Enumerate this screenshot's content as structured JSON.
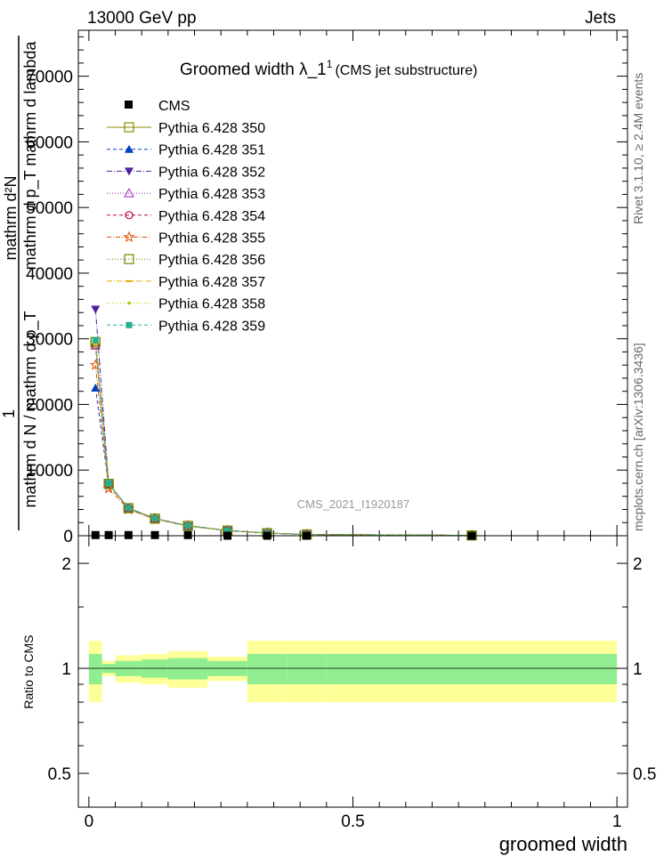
{
  "header": {
    "left": "13000 GeV pp",
    "right": "Jets"
  },
  "main_plot": {
    "title": "Groomed width  λ_1",
    "title_sup": "1",
    "title_suffix": "(CMS jet substructure)",
    "ylabel_line1": "mathrm d²N",
    "ylabel_line2": "mathrm d p_T mathrm d lambda",
    "ylabel_line3": "1",
    "ylabel_line4": "mathrm d N / mathrm d p_T",
    "y_ticks": [
      "0",
      "10000",
      "20000",
      "30000",
      "40000",
      "50000",
      "60000",
      "70000"
    ],
    "watermark": "CMS_2021_I1920187"
  },
  "side_text": {
    "rivet": "Rivet 3.1.10, ≥ 2.4M events",
    "mcplots": "mcplots.cern.ch [arXiv:1306.3436]"
  },
  "ratio_plot": {
    "ylabel": "Ratio to CMS",
    "y_ticks_left": [
      "0.5",
      "1",
      "2"
    ],
    "y_ticks_right": [
      "0.5",
      "1",
      "2"
    ],
    "x_ticks": [
      "0",
      "0.5",
      "1"
    ],
    "xlabel": "groomed width"
  },
  "chart_data": {
    "type": "line",
    "xlim": [
      -0.02,
      1.02
    ],
    "ylim": [
      0,
      77000
    ],
    "ratio_ylim": [
      0.4,
      2.4
    ],
    "ratio_log_scale": true,
    "x_label": "groomed width",
    "bin_edges": [
      0,
      0.025,
      0.05,
      0.1,
      0.15,
      0.225,
      0.3,
      0.375,
      0.45,
      1.0
    ],
    "bin_centers": [
      0.0125,
      0.0375,
      0.075,
      0.125,
      0.1875,
      0.2625,
      0.3375,
      0.4125,
      0.725
    ],
    "cms": {
      "name": "CMS",
      "values": [
        100,
        100,
        100,
        100,
        100,
        0,
        0,
        0,
        0
      ],
      "band_inner": [
        0.1,
        0.03,
        0.05,
        0.06,
        0.07,
        0.05,
        0.1,
        0.1,
        0.1
      ],
      "band_outer": [
        0.2,
        0.05,
        0.09,
        0.1,
        0.12,
        0.08,
        0.2,
        0.2,
        0.2
      ]
    },
    "series": [
      {
        "name": "Pythia 6.428 350",
        "color": "#8b8b00",
        "marker": "open-square",
        "dash": "solid",
        "values": [
          29500,
          7900,
          4200,
          2600,
          1500,
          800,
          400,
          200,
          50
        ]
      },
      {
        "name": "Pythia 6.428 351",
        "color": "#0040c0",
        "marker": "triangle-up",
        "dash": "4,3",
        "values": [
          22500,
          7700,
          4200,
          2650,
          1550,
          820,
          410,
          200,
          50
        ]
      },
      {
        "name": "Pythia 6.428 352",
        "color": "#5020a0",
        "marker": "triangle-down",
        "dash": "6,2,1,2",
        "values": [
          34500,
          7900,
          4100,
          2550,
          1480,
          790,
          390,
          190,
          50
        ]
      },
      {
        "name": "Pythia 6.428 353",
        "color": "#a020c0",
        "marker": "open-triangle-up",
        "dash": "1,2",
        "values": [
          29000,
          7800,
          4150,
          2600,
          1500,
          800,
          400,
          200,
          50
        ]
      },
      {
        "name": "Pythia 6.428 354",
        "color": "#c00030",
        "marker": "open-circle",
        "dash": "4,3",
        "values": [
          29000,
          7850,
          4200,
          2600,
          1500,
          800,
          400,
          200,
          50
        ]
      },
      {
        "name": "Pythia 6.428 355",
        "color": "#e05000",
        "marker": "open-star",
        "dash": "5,2,1,2",
        "values": [
          26000,
          7200,
          4000,
          2550,
          1480,
          790,
          400,
          200,
          50
        ]
      },
      {
        "name": "Pythia 6.428 356",
        "color": "#6a8a00",
        "marker": "open-square",
        "dash": "1,2",
        "values": [
          29500,
          7900,
          4200,
          2600,
          1500,
          800,
          400,
          200,
          50
        ]
      },
      {
        "name": "Pythia 6.428 357",
        "color": "#e0b000",
        "marker": "dash",
        "dash": "6,2,1,2",
        "values": [
          29300,
          7850,
          4180,
          2600,
          1500,
          800,
          400,
          200,
          50
        ]
      },
      {
        "name": "Pythia 6.428 358",
        "color": "#b0c800",
        "marker": "dot",
        "dash": "1,2",
        "values": [
          29200,
          7850,
          4180,
          2600,
          1500,
          800,
          400,
          200,
          50
        ]
      },
      {
        "name": "Pythia 6.428 359",
        "color": "#20b090",
        "marker": "filled-square",
        "dash": "4,3",
        "values": [
          29800,
          7950,
          4220,
          2620,
          1510,
          800,
          400,
          200,
          50
        ]
      }
    ]
  }
}
